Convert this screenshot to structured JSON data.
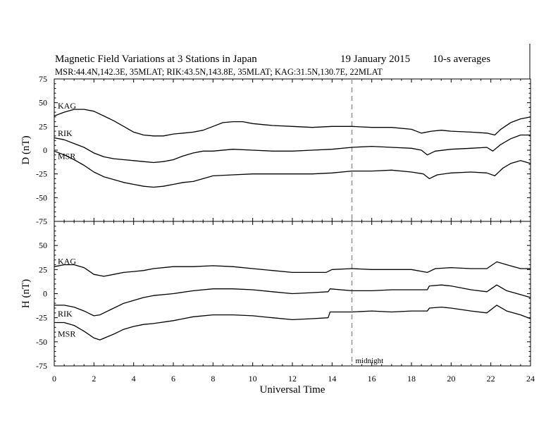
{
  "header": {
    "title": "Magnetic Field Variations at 3 Stations in Japan",
    "date": "19 January 2015",
    "averaging": "10-s averages",
    "stations_line": "MSR:44.4N,142.3E, 35MLAT;  RIK:43.5N,143.8E, 35MLAT;  KAG:31.5N,130.7E, 22MLAT"
  },
  "annotation": {
    "midnight_label": "midnight",
    "midnight_ut": 15
  },
  "chart_data": [
    {
      "type": "line",
      "panel": "D",
      "ylabel": "D (nT)",
      "xlabel": "",
      "xlim": [
        0,
        24
      ],
      "ylim": [
        -75,
        75
      ],
      "yticks": [
        75,
        50,
        25,
        0,
        -25,
        -50,
        -75
      ],
      "xticks": [
        0,
        2,
        4,
        6,
        8,
        10,
        12,
        14,
        16,
        18,
        20,
        22,
        24
      ],
      "series": [
        {
          "name": "KAG",
          "x": [
            0,
            0.5,
            1,
            1.5,
            2,
            2.5,
            3,
            3.5,
            4,
            4.5,
            5,
            5.5,
            6,
            6.5,
            7,
            7.5,
            8,
            8.5,
            9,
            9.5,
            10,
            11,
            12,
            13,
            14,
            15,
            16,
            17,
            18,
            18.5,
            19,
            19.5,
            20,
            21,
            21.8,
            22.2,
            22.5,
            23,
            23.5,
            24
          ],
          "y": [
            36,
            40,
            43,
            43,
            41,
            36,
            31,
            25,
            19,
            16,
            15,
            15,
            17,
            18,
            19,
            21,
            25,
            29,
            30,
            30,
            28,
            26,
            25,
            24,
            25,
            25,
            24,
            24,
            22,
            18,
            20,
            21,
            20,
            19,
            18,
            16,
            22,
            29,
            33,
            35
          ]
        },
        {
          "name": "RIK",
          "x": [
            0,
            0.5,
            1,
            1.5,
            2,
            2.5,
            3,
            3.5,
            4,
            4.5,
            5,
            5.5,
            6,
            6.5,
            7,
            7.5,
            8,
            9,
            10,
            11,
            12,
            13,
            14,
            15,
            16,
            17,
            18,
            18.5,
            18.8,
            19.2,
            20,
            21,
            21.8,
            22.1,
            22.5,
            23,
            23.5,
            24
          ],
          "y": [
            13,
            11,
            7,
            3,
            -3,
            -7,
            -9,
            -10,
            -11,
            -12,
            -13,
            -12,
            -10,
            -6,
            -3,
            -1,
            -1,
            1,
            0,
            -1,
            -1,
            0,
            1,
            3,
            4,
            3,
            2,
            0,
            -5,
            -1,
            1,
            2,
            3,
            -1,
            6,
            12,
            16,
            16
          ]
        },
        {
          "name": "MSR",
          "x": [
            0,
            0.5,
            1,
            1.5,
            2,
            2.5,
            3,
            3.5,
            4,
            4.5,
            5,
            5.5,
            6,
            6.5,
            7,
            7.5,
            8,
            9,
            10,
            11,
            12,
            13,
            14,
            15,
            16,
            17,
            18,
            18.6,
            18.9,
            19.3,
            20,
            21,
            21.8,
            22.2,
            22.6,
            23,
            23.5,
            24
          ],
          "y": [
            -1,
            -5,
            -10,
            -16,
            -23,
            -28,
            -31,
            -34,
            -36,
            -38,
            -39,
            -38,
            -36,
            -34,
            -33,
            -30,
            -27,
            -26,
            -25,
            -25,
            -25,
            -25,
            -24,
            -22,
            -22,
            -21,
            -23,
            -25,
            -30,
            -26,
            -24,
            -23,
            -24,
            -27,
            -19,
            -14,
            -11,
            -14
          ]
        }
      ]
    },
    {
      "type": "line",
      "panel": "H",
      "ylabel": "H (nT)",
      "xlabel": "Universal Time",
      "xlim": [
        0,
        24
      ],
      "ylim": [
        -75,
        75
      ],
      "yticks": [
        50,
        25,
        0,
        -25,
        -50,
        -75
      ],
      "xticks": [
        0,
        2,
        4,
        6,
        8,
        10,
        12,
        14,
        16,
        18,
        20,
        22,
        24
      ],
      "series": [
        {
          "name": "KAG",
          "x": [
            0,
            0.5,
            1,
            1.5,
            2,
            2.5,
            3,
            3.5,
            4,
            4.5,
            5,
            6,
            7,
            8,
            9,
            10,
            11,
            12,
            13,
            13.7,
            14,
            15,
            16,
            17,
            18,
            18.8,
            19.2,
            20,
            21,
            21.8,
            22.3,
            22.8,
            23.5,
            24
          ],
          "y": [
            28,
            30,
            30,
            27,
            20,
            18,
            20,
            22,
            23,
            24,
            26,
            28,
            28,
            29,
            28,
            26,
            24,
            22,
            22,
            22,
            25,
            26,
            25,
            25,
            25,
            22,
            26,
            27,
            26,
            26,
            33,
            30,
            26,
            26
          ]
        },
        {
          "name": "RIK",
          "x": [
            0,
            0.5,
            1,
            1.5,
            2,
            2.3,
            3,
            3.5,
            4,
            4.5,
            5,
            6,
            7,
            8,
            9,
            10,
            11,
            12,
            13,
            13.8,
            13.9,
            15,
            16,
            17,
            18,
            18.8,
            18.9,
            19.5,
            20,
            21,
            21.8,
            22.3,
            22.8,
            23.5,
            24
          ],
          "y": [
            -12,
            -12,
            -14,
            -18,
            -23,
            -22,
            -15,
            -10,
            -7,
            -4,
            -2,
            0,
            3,
            5,
            5,
            4,
            2,
            0,
            1,
            2,
            5,
            3,
            3,
            4,
            4,
            4,
            8,
            9,
            8,
            4,
            2,
            9,
            3,
            -1,
            -4
          ]
        },
        {
          "name": "MSR",
          "x": [
            0,
            0.5,
            1,
            1.5,
            2,
            2.3,
            3,
            3.5,
            4,
            4.5,
            5,
            6,
            7,
            8,
            9,
            10,
            11,
            12,
            13,
            13.8,
            13.9,
            15,
            16,
            17,
            18,
            18.8,
            18.9,
            19.5,
            20,
            21,
            21.8,
            22.3,
            22.8,
            23.5,
            24
          ],
          "y": [
            -30,
            -30,
            -33,
            -39,
            -46,
            -48,
            -42,
            -37,
            -34,
            -32,
            -31,
            -28,
            -24,
            -22,
            -22,
            -23,
            -25,
            -27,
            -26,
            -25,
            -19,
            -19,
            -18,
            -19,
            -18,
            -18,
            -15,
            -14,
            -15,
            -18,
            -20,
            -12,
            -18,
            -22,
            -26
          ]
        }
      ]
    }
  ]
}
